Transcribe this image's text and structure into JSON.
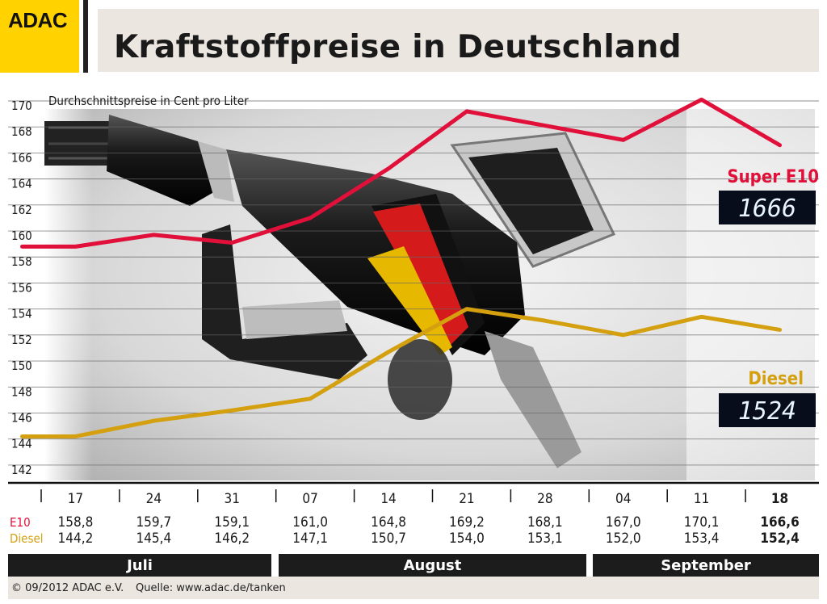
{
  "logo": "ADAC",
  "title": "Kraftstoffpreise in Deutschland",
  "colors": {
    "e10": "#e0103a",
    "diesel": "#d4a010",
    "brand": "#ffd200"
  },
  "chart_data": {
    "type": "line",
    "ylabel": "Durchschnittspreise in Cent pro Liter",
    "ylim": [
      141,
      170
    ],
    "yticks": [
      170,
      168,
      166,
      164,
      162,
      160,
      158,
      156,
      154,
      152,
      150,
      148,
      146,
      144,
      142
    ],
    "categories": [
      "17",
      "24",
      "31",
      "07",
      "14",
      "21",
      "28",
      "04",
      "11",
      "18"
    ],
    "months": [
      "Juli",
      "August",
      "September"
    ],
    "series": [
      {
        "name": "Super E10",
        "table_label": "E10",
        "color": "#e0103a",
        "values": [
          158.8,
          159.7,
          159.1,
          161.0,
          164.8,
          169.2,
          168.1,
          167.0,
          170.1,
          166.6
        ],
        "labels": [
          "158,8",
          "159,7",
          "159,1",
          "161,0",
          "164,8",
          "169,2",
          "168,1",
          "167,0",
          "170,1",
          "166,6"
        ],
        "display": "1666"
      },
      {
        "name": "Diesel",
        "table_label": "Diesel",
        "color": "#d4a010",
        "values": [
          144.2,
          145.4,
          146.2,
          147.1,
          150.7,
          154.0,
          153.1,
          152.0,
          153.4,
          152.4
        ],
        "labels": [
          "144,2",
          "145,4",
          "146,2",
          "147,1",
          "150,7",
          "154,0",
          "153,1",
          "152,0",
          "153,4",
          "152,4"
        ],
        "display": "1524"
      }
    ]
  },
  "footer": {
    "copyright": "© 09/2012 ADAC e.V.",
    "source": "Quelle: www.adac.de/tanken"
  }
}
